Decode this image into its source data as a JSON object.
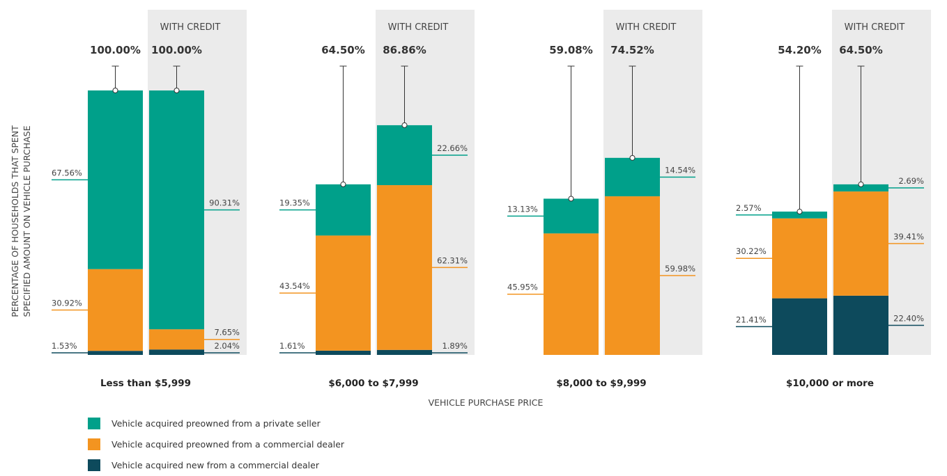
{
  "chart_data": {
    "type": "bar",
    "stacked": true,
    "xlabel": "VEHICLE PURCHASE PRICE",
    "ylabel_lines": [
      "PERCENTAGE OF HOUSEHOLDS THAT SPENT",
      "SPECIFIED AMOUNT ON VEHICLE PURCHASE"
    ],
    "credit_label": "WITH CREDIT",
    "ylim": [
      0,
      100
    ],
    "categories": [
      "Less than $5,999",
      "$6,000 to $7,999",
      "$8,000 to $9,999",
      "$10,000 or more"
    ],
    "series": [
      {
        "name": "Vehicle acquired new from a commercial dealer",
        "color": "#0d4a5c"
      },
      {
        "name": "Vehicle acquired preowned from a commercial dealer",
        "color": "#f39420"
      },
      {
        "name": "Vehicle acquired preowned from a private seller",
        "color": "#00a08a"
      }
    ],
    "groups": [
      {
        "category": "Less than $5,999",
        "bars": [
          {
            "credit": false,
            "total": "100.00%",
            "values": [
              1.53,
              30.92,
              67.56
            ],
            "labels": [
              "1.53%",
              "30.92%",
              "67.56%"
            ]
          },
          {
            "credit": true,
            "total": "100.00%",
            "values": [
              2.04,
              7.65,
              90.31
            ],
            "labels": [
              "2.04%",
              "7.65%",
              "90.31%"
            ]
          }
        ]
      },
      {
        "category": "$6,000 to $7,999",
        "bars": [
          {
            "credit": false,
            "total": "64.50%",
            "values": [
              1.61,
              43.54,
              19.35
            ],
            "labels": [
              "1.61%",
              "43.54%",
              "19.35%"
            ]
          },
          {
            "credit": true,
            "total": "86.86%",
            "values": [
              1.89,
              62.31,
              22.66
            ],
            "labels": [
              "1.89%",
              "62.31%",
              "22.66%"
            ]
          }
        ]
      },
      {
        "category": "$8,000 to $9,999",
        "bars": [
          {
            "credit": false,
            "total": "59.08%",
            "values": [
              0,
              45.95,
              13.13
            ],
            "labels": [
              "",
              "45.95%",
              "13.13%"
            ]
          },
          {
            "credit": true,
            "total": "74.52%",
            "values": [
              0,
              59.98,
              14.54
            ],
            "labels": [
              "",
              "59.98%",
              "14.54%"
            ]
          }
        ]
      },
      {
        "category": "$10,000 or more",
        "bars": [
          {
            "credit": false,
            "total": "54.20%",
            "values": [
              21.41,
              30.22,
              2.57
            ],
            "labels": [
              "21.41%",
              "30.22%",
              "2.57%"
            ]
          },
          {
            "credit": true,
            "total": "64.50%",
            "values": [
              22.4,
              39.41,
              2.69
            ],
            "labels": [
              "22.40%",
              "39.41%",
              "2.69%"
            ]
          }
        ]
      }
    ],
    "legend": [
      {
        "label": "Vehicle acquired preowned from a private seller",
        "color": "#00a08a"
      },
      {
        "label": "Vehicle acquired preowned from a commercial dealer",
        "color": "#f39420"
      },
      {
        "label": "Vehicle acquired new from a commercial dealer",
        "color": "#0d4a5c"
      }
    ],
    "legend_placement": "bottom-left",
    "grid": false
  }
}
